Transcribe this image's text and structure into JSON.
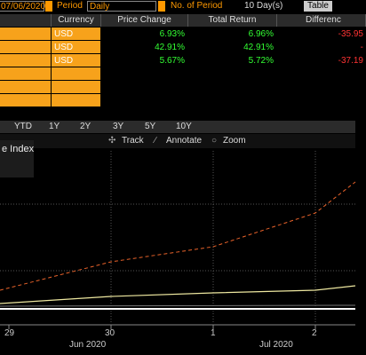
{
  "toolbar": {
    "date": "07/06/2020",
    "period_label": "Period",
    "period_value": "Daily",
    "num_label": "No. of Period",
    "num_value": "10 Day(s)",
    "view": "Table"
  },
  "table": {
    "headers": [
      "Currency",
      "Price Change",
      "Total Return",
      "Differenc"
    ],
    "rows": [
      [
        "USD",
        "6.93%",
        "6.96%",
        "-35.95"
      ],
      [
        "USD",
        "42.91%",
        "42.91%",
        "-"
      ],
      [
        "USD",
        "5.67%",
        "5.72%",
        "-37.19"
      ]
    ]
  },
  "ranges": [
    "YTD",
    "1Y",
    "2Y",
    "3Y",
    "5Y",
    "10Y"
  ],
  "chart_tools": [
    "Track",
    "Annotate",
    "Zoom"
  ],
  "legend": "e Index",
  "x_axis": {
    "days": [
      "29",
      "30",
      "1",
      "2"
    ],
    "months": [
      "Jun 2020",
      "Jul 2020"
    ]
  }
}
